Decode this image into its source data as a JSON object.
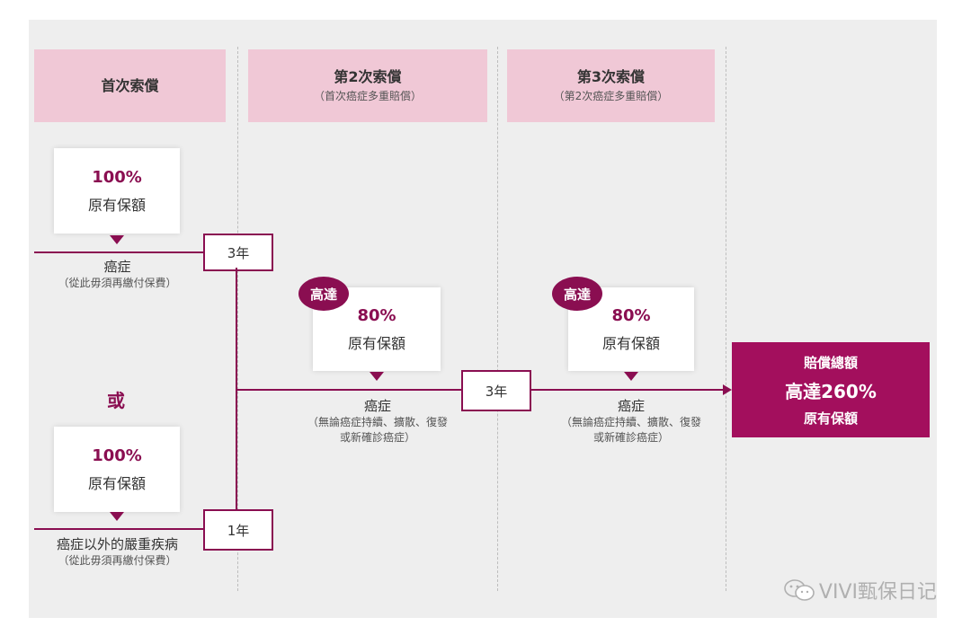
{
  "headers": {
    "first": {
      "title": "首次索償"
    },
    "second": {
      "title": "第2次索償",
      "sub": "（首次癌症多重賠償）"
    },
    "third": {
      "title": "第3次索償",
      "sub": "（第2次癌症多重賠償）"
    }
  },
  "first_claim_top": {
    "pct": "100%",
    "label": "原有保額",
    "cause": "癌症",
    "note": "（從此毋須再繳付保費）"
  },
  "or_label": "或",
  "first_claim_bottom": {
    "pct": "100%",
    "label": "原有保額",
    "cause": "癌症以外的嚴重疾病",
    "note": "（從此毋須再繳付保費）"
  },
  "year_boxes": {
    "top": "3年",
    "middle": "3年",
    "bottom": "1年"
  },
  "second_claim": {
    "badge": "高達",
    "pct": "80%",
    "label": "原有保額",
    "cause": "癌症",
    "note_line1": "（無論癌症持續、擴散、復發",
    "note_line2": "或新確診癌症）"
  },
  "third_claim": {
    "badge": "高達",
    "pct": "80%",
    "label": "原有保額",
    "cause": "癌症",
    "note_line1": "（無論癌症持續、擴散、復發",
    "note_line2": "或新確診癌症）"
  },
  "total": {
    "line1": "賠償總額",
    "line2": "高達260%",
    "line3": "原有保額"
  },
  "watermark": {
    "text": "VIVI甄保日记",
    "icon": "wechat-icon"
  },
  "colors": {
    "accent": "#8a0e51",
    "header_pink": "#f0c8d6",
    "total_bg": "#a30f5d",
    "panel_bg": "#eeeeee"
  }
}
